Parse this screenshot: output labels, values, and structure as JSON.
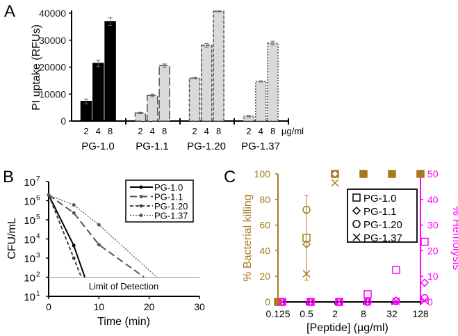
{
  "panel_labels": [
    "A",
    "B",
    "C"
  ],
  "chart_data": [
    {
      "type": "bar",
      "panel": "A",
      "ylabel": "PI uptake (RFUs)",
      "ylim": [
        0,
        40000
      ],
      "yticks": [
        0,
        10000,
        20000,
        30000,
        40000
      ],
      "doses": [
        "2",
        "4",
        "8"
      ],
      "unit": "µg/ml",
      "groups": [
        {
          "name": "PG-1.0",
          "values": [
            7300,
            21400,
            36900
          ],
          "errors": [
            900,
            1200,
            1400
          ],
          "style": "solid-black"
        },
        {
          "name": "PG-1.1",
          "values": [
            3000,
            9500,
            20600
          ],
          "errors": [
            300,
            500,
            600
          ],
          "style": "long-dash"
        },
        {
          "name": "PG-1.20",
          "values": [
            15900,
            28100,
            40700
          ],
          "errors": [
            300,
            700,
            200
          ],
          "style": "dash"
        },
        {
          "name": "PG-1.37",
          "values": [
            1800,
            14700,
            28900
          ],
          "errors": [
            300,
            200,
            700
          ],
          "style": "dot"
        }
      ]
    },
    {
      "type": "line",
      "panel": "B",
      "xlabel": "Time (min)",
      "ylabel": "CFU/mL",
      "xlim": [
        0,
        30
      ],
      "xticks": [
        "0",
        "10",
        "20",
        "30"
      ],
      "ylim_log10": [
        1,
        7
      ],
      "yticks": [
        "10",
        "10",
        "10",
        "10",
        "10",
        "10",
        "10"
      ],
      "ytick_exps": [
        "1",
        "2",
        "3",
        "4",
        "5",
        "6",
        "7"
      ],
      "annotation": "Limit of Detection",
      "limit": 100,
      "series": [
        {
          "name": "PG-1.0",
          "x": [
            0,
            5,
            7.2
          ],
          "y": [
            2000000,
            4500,
            100
          ],
          "style": "solid"
        },
        {
          "name": "PG-1.1",
          "x": [
            0,
            5,
            10,
            19
          ],
          "y": [
            2000000,
            230000,
            5000,
            100
          ],
          "style": "long-dash"
        },
        {
          "name": "PG-1.20",
          "x": [
            0,
            5,
            6.5
          ],
          "y": [
            2000000,
            1000,
            100
          ],
          "style": "dash"
        },
        {
          "name": "PG-1.37",
          "x": [
            0,
            5,
            10,
            21.5
          ],
          "y": [
            2000000,
            600000,
            55000,
            100
          ],
          "style": "dot"
        }
      ]
    },
    {
      "type": "scatter",
      "panel": "C",
      "xlabel": "[Peptide] (µg/ml)",
      "ylabel_left": "% Bacterial killing",
      "ylabel_right": "% Hemolysis",
      "x": [
        "0.125",
        "0.5",
        "2",
        "8",
        "32",
        "128"
      ],
      "ylim_left": [
        0,
        100
      ],
      "yticks_left": [
        "0",
        "20",
        "40",
        "60",
        "80",
        "100"
      ],
      "ylim_right": [
        0,
        50
      ],
      "yticks_right": [
        "0",
        "10",
        "20",
        "30",
        "40",
        "50"
      ],
      "colors": {
        "killing": "#a87a1e",
        "hemolysis": "#ff00ff"
      },
      "series": [
        {
          "name": "PG-1.0",
          "marker": "square",
          "killing": [
            0,
            50,
            100,
            100,
            100,
            100
          ],
          "hemolysis": [
            0,
            0,
            0,
            3,
            12.5,
            23.5
          ]
        },
        {
          "name": "PG-1.1",
          "marker": "diamond",
          "killing": [
            0,
            45,
            100,
            100,
            100,
            100
          ],
          "hemolysis": [
            0,
            0,
            0,
            0,
            0.5,
            7.5
          ]
        },
        {
          "name": "PG-1.20",
          "marker": "circle",
          "killing": [
            0,
            72,
            100,
            100,
            100,
            100
          ],
          "hemolysis": [
            0,
            0,
            0,
            0,
            0.3,
            1.5
          ]
        },
        {
          "name": "PG-1.37",
          "marker": "x",
          "killing": [
            0,
            22,
            93,
            100,
            100,
            100
          ],
          "hemolysis": [
            0,
            0,
            0,
            0,
            0.3,
            0.5
          ]
        }
      ]
    }
  ]
}
